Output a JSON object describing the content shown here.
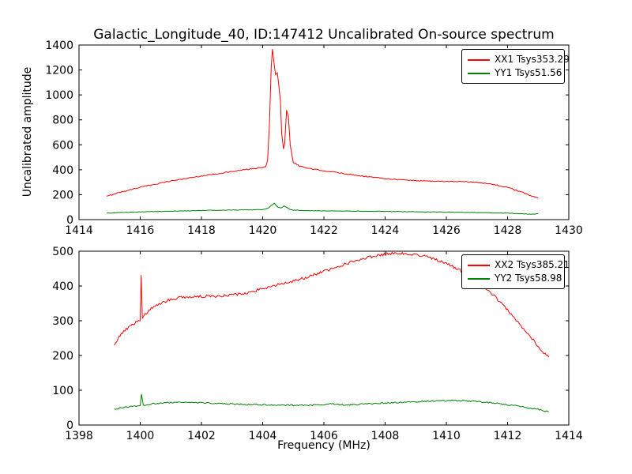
{
  "figure": {
    "title": "Galactic_Longitude_40, ID:147412 Uncalibrated On-source spectrum",
    "xlabel": "Frequency (MHz)",
    "ylabel": "Uncalibrated amplitude",
    "background": "#ffffff",
    "axis_color": "#000000"
  },
  "chart_data": [
    {
      "type": "line",
      "subplot": "top",
      "xlim": [
        1414,
        1430
      ],
      "ylim": [
        0,
        1400
      ],
      "xticks": [
        1414,
        1416,
        1418,
        1420,
        1422,
        1424,
        1426,
        1428,
        1430
      ],
      "yticks": [
        0,
        200,
        400,
        600,
        800,
        1000,
        1200,
        1400
      ],
      "grid": false,
      "legend_position": "upper right",
      "series": [
        {
          "name": "XX1 Tsys353.29",
          "color": "#ff0000",
          "noise": 4,
          "x": [
            1414.9,
            1415.2,
            1415.6,
            1416.0,
            1416.5,
            1417.0,
            1417.5,
            1418.0,
            1418.5,
            1419.0,
            1419.4,
            1419.8,
            1420.0,
            1420.1,
            1420.16,
            1420.22,
            1420.28,
            1420.32,
            1420.38,
            1420.42,
            1420.48,
            1420.52,
            1420.58,
            1420.62,
            1420.68,
            1420.72,
            1420.78,
            1420.84,
            1420.9,
            1421.0,
            1421.2,
            1421.5,
            1422.0,
            1422.5,
            1423.0,
            1423.5,
            1424.0,
            1424.5,
            1425.0,
            1425.5,
            1426.0,
            1426.5,
            1427.0,
            1427.5,
            1428.0,
            1428.4,
            1428.7,
            1429.0
          ],
          "y": [
            185,
            210,
            235,
            260,
            285,
            310,
            330,
            350,
            368,
            385,
            400,
            412,
            418,
            425,
            470,
            760,
            1230,
            1370,
            1240,
            1160,
            1175,
            1090,
            950,
            690,
            570,
            610,
            880,
            830,
            600,
            460,
            430,
            410,
            392,
            375,
            358,
            342,
            330,
            320,
            313,
            309,
            306,
            305,
            300,
            284,
            258,
            225,
            198,
            172
          ]
        },
        {
          "name": "YY1 Tsys51.56",
          "color": "#008000",
          "noise": 2,
          "x": [
            1414.9,
            1415.5,
            1416.0,
            1416.5,
            1417.0,
            1417.5,
            1418.0,
            1418.5,
            1419.0,
            1419.5,
            1420.0,
            1420.2,
            1420.3,
            1420.38,
            1420.45,
            1420.5,
            1420.6,
            1420.7,
            1420.8,
            1420.9,
            1421.0,
            1421.5,
            1422.0,
            1423.0,
            1424.0,
            1425.0,
            1426.0,
            1427.0,
            1428.0,
            1428.5,
            1428.8,
            1429.0
          ],
          "y": [
            52,
            58,
            62,
            65,
            68,
            70,
            73,
            75,
            77,
            78,
            80,
            95,
            118,
            130,
            112,
            100,
            95,
            108,
            98,
            82,
            76,
            72,
            70,
            68,
            66,
            63,
            60,
            57,
            52,
            46,
            42,
            48
          ]
        }
      ]
    },
    {
      "type": "line",
      "subplot": "bottom",
      "xlim": [
        1398,
        1414
      ],
      "ylim": [
        0,
        500
      ],
      "xticks": [
        1398,
        1400,
        1402,
        1404,
        1406,
        1408,
        1410,
        1412,
        1414
      ],
      "yticks": [
        0,
        100,
        200,
        300,
        400,
        500
      ],
      "grid": false,
      "legend_position": "upper right",
      "series": [
        {
          "name": "XX2 Tsys385.21",
          "color": "#ff0000",
          "noise": 4,
          "x": [
            1399.15,
            1399.3,
            1399.5,
            1399.7,
            1399.9,
            1400.0,
            1400.03,
            1400.07,
            1400.2,
            1400.4,
            1400.7,
            1401.0,
            1401.3,
            1401.7,
            1402.0,
            1402.5,
            1403.0,
            1403.3,
            1403.7,
            1404.0,
            1404.3,
            1404.7,
            1405.0,
            1405.4,
            1405.8,
            1406.2,
            1406.6,
            1407.0,
            1407.4,
            1407.8,
            1408.1,
            1408.4,
            1408.8,
            1409.2,
            1409.6,
            1410.0,
            1410.4,
            1410.8,
            1411.2,
            1411.6,
            1412.0,
            1412.4,
            1412.8,
            1413.1,
            1413.35
          ],
          "y": [
            232,
            252,
            272,
            288,
            298,
            303,
            430,
            308,
            322,
            338,
            352,
            362,
            366,
            369,
            370,
            371,
            374,
            378,
            385,
            393,
            400,
            408,
            414,
            424,
            436,
            448,
            460,
            472,
            482,
            489,
            493,
            495,
            493,
            488,
            478,
            465,
            448,
            427,
            400,
            368,
            330,
            290,
            250,
            215,
            195
          ]
        },
        {
          "name": "YY2 Tsys58.98",
          "color": "#008000",
          "noise": 2,
          "x": [
            1399.15,
            1399.4,
            1399.7,
            1399.95,
            1400.0,
            1400.04,
            1400.1,
            1400.4,
            1400.8,
            1401.2,
            1401.6,
            1402.0,
            1402.5,
            1403.0,
            1403.5,
            1404.0,
            1404.5,
            1405.0,
            1405.5,
            1406.0,
            1406.3,
            1406.6,
            1407.0,
            1407.5,
            1408.0,
            1408.5,
            1409.0,
            1409.5,
            1410.0,
            1410.5,
            1411.0,
            1411.5,
            1412.0,
            1412.5,
            1413.0,
            1413.35
          ],
          "y": [
            45,
            50,
            53,
            55,
            56,
            90,
            57,
            61,
            64,
            65,
            65,
            64,
            62,
            61,
            59,
            58,
            57,
            57,
            57,
            58,
            61,
            58,
            59,
            61,
            63,
            65,
            67,
            69,
            70,
            70,
            68,
            64,
            58,
            52,
            45,
            38
          ]
        }
      ]
    }
  ]
}
